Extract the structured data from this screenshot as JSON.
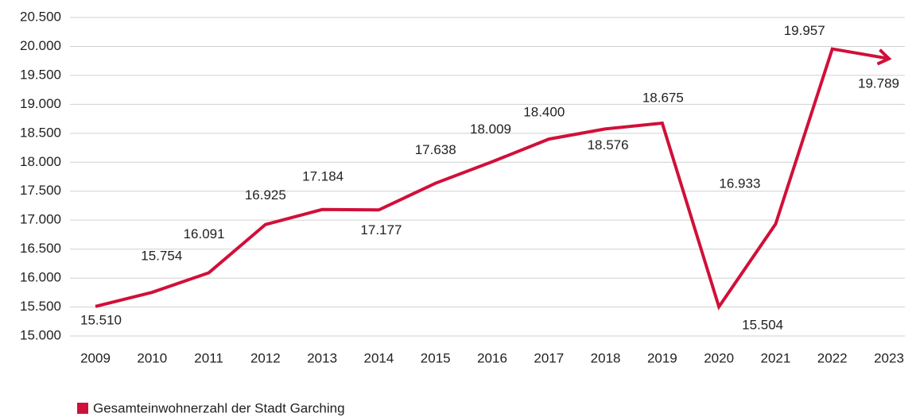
{
  "chart_data": {
    "type": "line",
    "categories": [
      "2009",
      "2010",
      "2011",
      "2012",
      "2013",
      "2014",
      "2015",
      "2016",
      "2017",
      "2018",
      "2019",
      "2020",
      "2021",
      "2022",
      "2023"
    ],
    "series": [
      {
        "name": "Gesamteinwohnerzahl der Stadt Garching",
        "color": "#d0103a",
        "values": [
          15510,
          15754,
          16091,
          16925,
          17184,
          17177,
          17638,
          18009,
          18400,
          18576,
          18675,
          15504,
          16933,
          19957,
          19789
        ],
        "value_labels": [
          "15.510",
          "15.754",
          "16.091",
          "16.925",
          "17.184",
          "17.177",
          "17.638",
          "18.009",
          "18.400",
          "18.576",
          "18.675",
          "15.504",
          "16.933",
          "19.957",
          "19.789"
        ]
      }
    ],
    "ylim": [
      15000,
      20500
    ],
    "yticks": [
      {
        "value": 15000,
        "label": "15.000"
      },
      {
        "value": 15500,
        "label": "15.500"
      },
      {
        "value": 16000,
        "label": "16.000"
      },
      {
        "value": 16500,
        "label": "16.500"
      },
      {
        "value": 17000,
        "label": "17.000"
      },
      {
        "value": 17500,
        "label": "17.500"
      },
      {
        "value": 18000,
        "label": "18.000"
      },
      {
        "value": 18500,
        "label": "18.500"
      },
      {
        "value": 19000,
        "label": "19.000"
      },
      {
        "value": 19500,
        "label": "19.500"
      },
      {
        "value": 20000,
        "label": "20.000"
      },
      {
        "value": 20500,
        "label": "20.500"
      }
    ],
    "grid": true,
    "legend": "bottom-left"
  }
}
